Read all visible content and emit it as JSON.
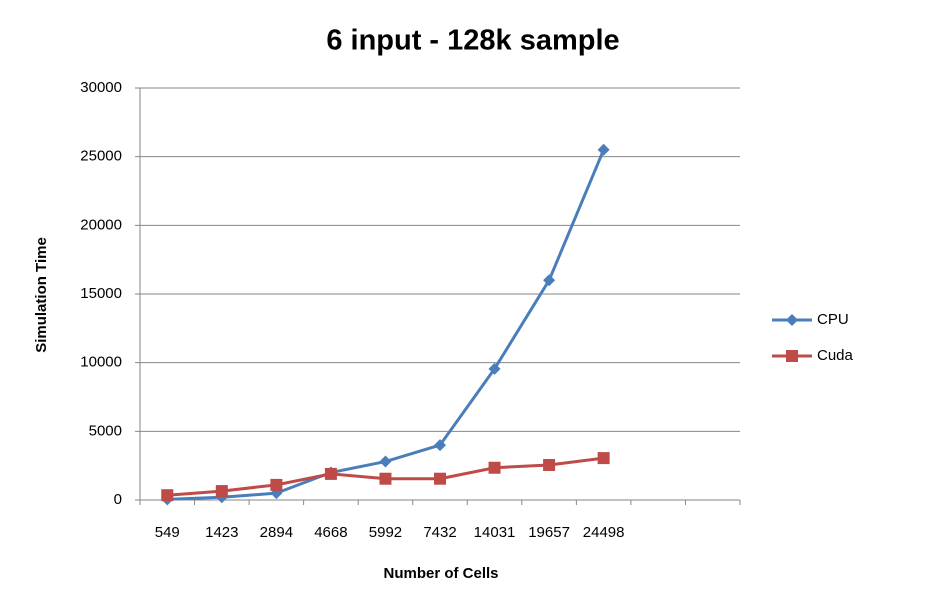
{
  "chart_data": {
    "type": "line",
    "title": "6 input - 128k sample",
    "x_label": "Number of Cells",
    "y_label": "Simulation Time",
    "categories": [
      "549",
      "1423",
      "2894",
      "4668",
      "5992",
      "7432",
      "14031",
      "19657",
      "24498",
      null,
      null
    ],
    "series": [
      {
        "name": "CPU",
        "color": "#4a7ebb",
        "marker": "diamond",
        "values": [
          50,
          200,
          500,
          2000,
          2800,
          4000,
          9550,
          16000,
          25500,
          null,
          null
        ]
      },
      {
        "name": "Cuda",
        "color": "#be4b48",
        "marker": "square",
        "values": [
          350,
          650,
          1100,
          1900,
          1550,
          1550,
          2350,
          2550,
          3050,
          null,
          null
        ]
      }
    ],
    "ylim": [
      0,
      30000
    ],
    "yticks": [
      0,
      5000,
      10000,
      15000,
      20000,
      25000,
      30000
    ],
    "grid": true,
    "legend": "right"
  }
}
